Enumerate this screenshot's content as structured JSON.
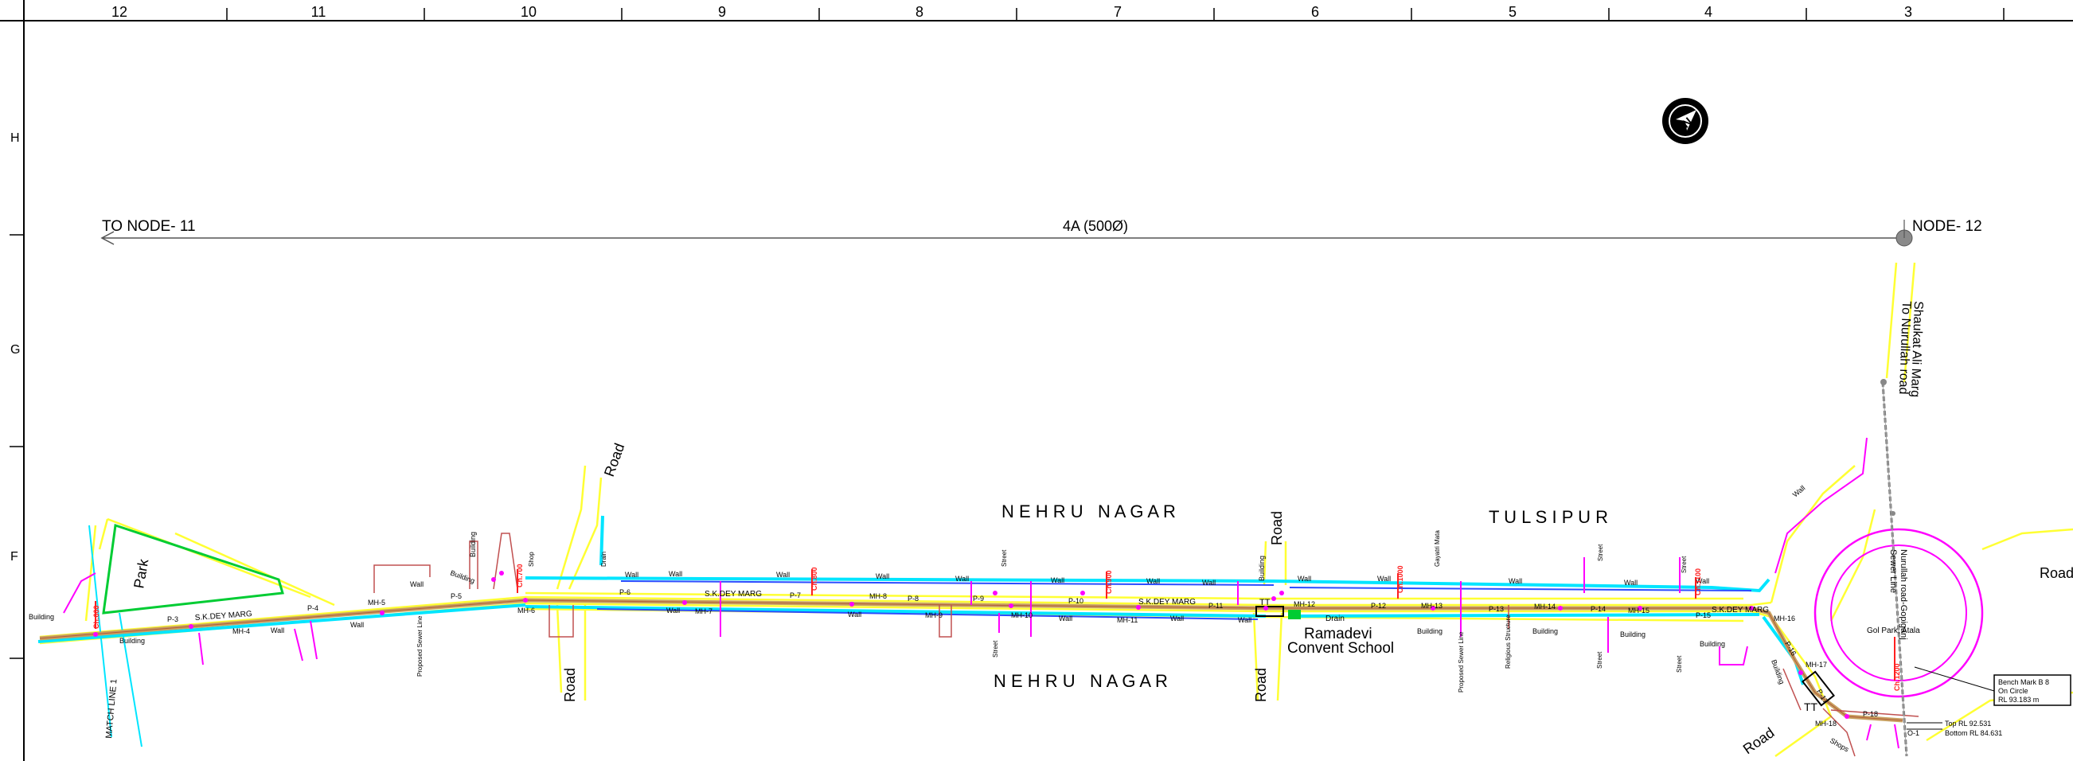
{
  "grid": {
    "columns": [
      "12",
      "11",
      "10",
      "9",
      "8",
      "7",
      "6",
      "5",
      "4",
      "3"
    ],
    "rows": [
      "H",
      "G",
      "F"
    ]
  },
  "trunk_line": {
    "label": "4A (500Ø)",
    "to_node": "TO NODE- 11",
    "node": "NODE- 12"
  },
  "areas": {
    "nehru_nagar_top": "N E H R U   N A G A R",
    "nehru_nagar_bottom": "N E H R U   N A G A R",
    "tulsipur": "T U L S I P U R"
  },
  "streets": {
    "sk_dey": "S.K.DEY MARG",
    "shaukat_line1": "Shaukat Ali Marg",
    "shaukat_line2": "To Nurullah road",
    "nurullah_line1": "Nurullah road-Gopiganj",
    "nurullah_line2": "Sewer Line",
    "road": "Road",
    "street": "Street"
  },
  "places": {
    "park": "Park",
    "gol_park": "Gol Park, Atala",
    "school_line1": "Ramadevi",
    "school_line2": "Convent School",
    "gayatri": "Gayatri Mata",
    "religious": "Religious Structure",
    "drain": "Drain",
    "wall": "Wall",
    "building": "Building",
    "shop": "Shop",
    "shops": "Shops",
    "proposed_sewer": "Proposed Sewer Line",
    "match_line": "MATCH LINE 1",
    "tt": "TT"
  },
  "manholes": [
    "MH-4",
    "MH-5",
    "MH-6",
    "MH-7",
    "MH-8",
    "MH-9",
    "MH-10",
    "MH-11",
    "MH-12",
    "MH-13",
    "MH-14",
    "MH-15",
    "MH-16",
    "MH-17",
    "MH-18"
  ],
  "pipes": [
    "P-3",
    "P-4",
    "P-5",
    "P-6",
    "P-7",
    "P-8",
    "P-9",
    "P-10",
    "P-11",
    "P-12",
    "P-13",
    "P-14",
    "P-15",
    "P-16",
    "P-17",
    "P-18"
  ],
  "chainages": [
    "Ch.600",
    "Ch.700",
    "Ch.800",
    "Ch.900",
    "Ch.1000",
    "Ch.1100",
    "Ch.1200",
    "Ch.1300"
  ],
  "benchmark": {
    "line1": "Bench Mark B 8",
    "line2": "On Circle",
    "line3": "RL 93.183 m"
  },
  "levels": {
    "top": "Top RL 92.531",
    "bottom": "Bottom RL 84.631",
    "o1": "O-1"
  },
  "north_symbol": "N",
  "colors": {
    "cyan": "#00e5ff",
    "yellow": "#ffff33",
    "magenta": "#ff00ff",
    "sewer": "#c8a060",
    "green": "#00cc33",
    "blue": "#2b4cff",
    "red": "#ff2020",
    "brown": "#b05a3a"
  }
}
